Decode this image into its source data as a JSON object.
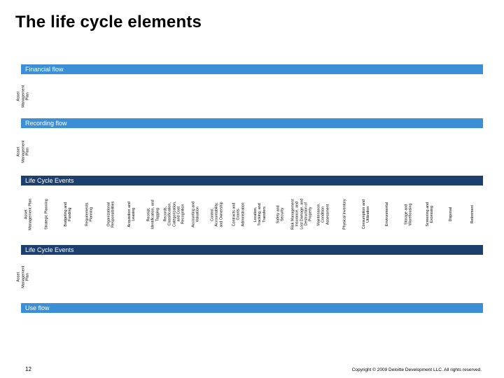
{
  "title": "The life cycle elements",
  "bands": {
    "financial": "Financial flow",
    "recording": "Recording flow",
    "events1": "Life Cycle Events",
    "events2": "Life Cycle Events",
    "use": "Use flow"
  },
  "side_labels": {
    "financial": "Asset\nManagement\nPlan",
    "recording": "Asset\nManagement\nPlan",
    "events2": "Asset\nManagement\nPlan"
  },
  "colors": {
    "band_light": "#3b8fd6",
    "band_dark": "#1c3f6e"
  },
  "events": [
    "Asset\nManagement Plan",
    "Strategic Planning",
    "Budgeting and\nFunding",
    "Requirements\nPlanning",
    "Organizational\nResponsibilities",
    "Acquisition and\nLeasing",
    "Receipt,\nIdentification, and\nTagging",
    "Records,\nClassification,\nCategorization,\nand Cost\nRecognition",
    "Accounting and\nValuation",
    "Control,\nAccountability,\nand Ownership",
    "Contracts and\nGrants\nAdministration",
    "Location,\nTracking, and\nTransfers",
    "Safety and\nSecurity",
    "Risk Management:\nInsurance, and\nLost Damage, and\nDestruction of\nProperty",
    "Maintenance,\nCondition\nAssessment",
    "Physical Inventory",
    "Consumption and\nUtilization",
    "Environmental",
    "Storage and\nWarehousing",
    "Screening and\nExcessing",
    "Disposal",
    "Retirement"
  ],
  "footer": {
    "page_number": "12",
    "copyright": "Copyright © 2009 Deloitte Development LLC. All rights reserved."
  }
}
